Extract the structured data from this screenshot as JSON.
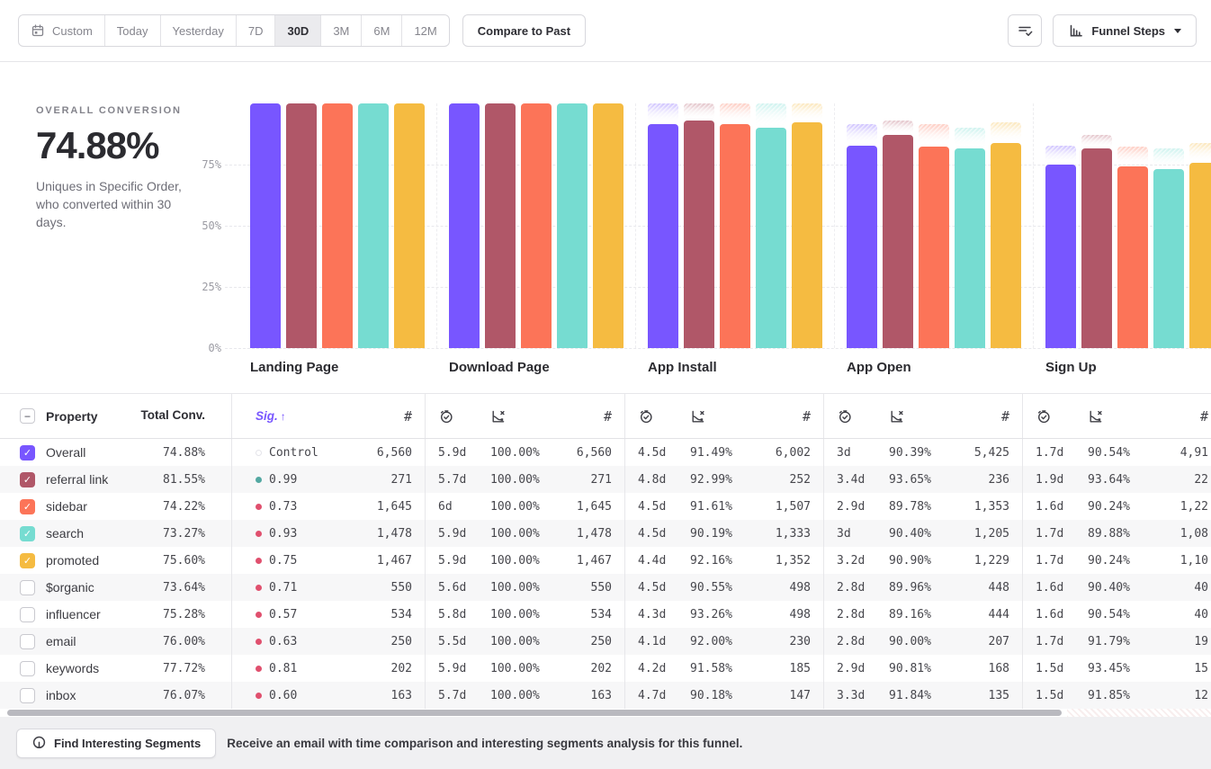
{
  "toolbar": {
    "date_picker": {
      "items": [
        "Custom",
        "Today",
        "Yesterday",
        "7D",
        "30D",
        "3M",
        "6M",
        "12M"
      ],
      "selected": "30D"
    },
    "compare_button": "Compare to Past",
    "chart_type_button": "Funnel Steps"
  },
  "summary": {
    "title": "OVERALL CONVERSION",
    "value": "74.88%",
    "description": "Uniques in Specific Order, who converted within 30 days."
  },
  "chart_data": {
    "type": "bar",
    "categories": [
      "Landing Page",
      "Download Page",
      "App Install",
      "App Open",
      "Sign Up"
    ],
    "y_ticks": [
      "75%",
      "50%",
      "25%",
      "0%"
    ],
    "ylim": [
      0,
      100
    ],
    "grid": "horizontal-dashed",
    "series": [
      {
        "name": "Overall",
        "color": "#7856FF",
        "values": [
          100,
          100,
          91.49,
          82.7,
          74.88
        ]
      },
      {
        "name": "referral link",
        "color": "#B05768",
        "values": [
          100,
          100,
          92.99,
          87.08,
          81.55
        ]
      },
      {
        "name": "sidebar",
        "color": "#FC7458",
        "values": [
          100,
          100,
          91.61,
          82.25,
          74.22
        ]
      },
      {
        "name": "search",
        "color": "#76DCD1",
        "values": [
          100,
          100,
          90.19,
          81.53,
          73.27
        ]
      },
      {
        "name": "promoted",
        "color": "#F5BB41",
        "values": [
          100,
          100,
          92.16,
          83.78,
          75.6
        ]
      }
    ]
  },
  "table": {
    "property_header": "Property",
    "total_header": "Total Conv.",
    "sig_header": "Sig.",
    "sort_arrow": "↑",
    "count_symbol": "#",
    "step_groups": [
      "Download Page",
      "App Install",
      "App Open",
      "Sign Up"
    ],
    "dot_colors": {
      "control": "#FFFFFF",
      "positive": "#53A8A2",
      "negative": "#E0506E"
    },
    "rows": [
      {
        "property": "Overall",
        "checked": true,
        "color": "#7856FF",
        "total": "74.88%",
        "sig": "Control",
        "dot": "control",
        "landing_count": "6,560",
        "cells": [
          [
            "5.9d",
            "100.00%",
            "6,560"
          ],
          [
            "4.5d",
            "91.49%",
            "6,002"
          ],
          [
            "3d",
            "90.39%",
            "5,425"
          ],
          [
            "1.7d",
            "90.54%",
            "4,91"
          ]
        ]
      },
      {
        "property": "referral link",
        "checked": true,
        "color": "#B05768",
        "total": "81.55%",
        "sig": "0.99",
        "dot": "positive",
        "landing_count": "271",
        "cells": [
          [
            "5.7d",
            "100.00%",
            "271"
          ],
          [
            "4.8d",
            "92.99%",
            "252"
          ],
          [
            "3.4d",
            "93.65%",
            "236"
          ],
          [
            "1.9d",
            "93.64%",
            "22"
          ]
        ]
      },
      {
        "property": "sidebar",
        "checked": true,
        "color": "#FC7458",
        "total": "74.22%",
        "sig": "0.73",
        "dot": "negative",
        "landing_count": "1,645",
        "cells": [
          [
            "6d",
            "100.00%",
            "1,645"
          ],
          [
            "4.5d",
            "91.61%",
            "1,507"
          ],
          [
            "2.9d",
            "89.78%",
            "1,353"
          ],
          [
            "1.6d",
            "90.24%",
            "1,22"
          ]
        ]
      },
      {
        "property": "search",
        "checked": true,
        "color": "#76DCD1",
        "total": "73.27%",
        "sig": "0.93",
        "dot": "negative",
        "landing_count": "1,478",
        "cells": [
          [
            "5.9d",
            "100.00%",
            "1,478"
          ],
          [
            "4.5d",
            "90.19%",
            "1,333"
          ],
          [
            "3d",
            "90.40%",
            "1,205"
          ],
          [
            "1.7d",
            "89.88%",
            "1,08"
          ]
        ]
      },
      {
        "property": "promoted",
        "checked": true,
        "color": "#F5BB41",
        "total": "75.60%",
        "sig": "0.75",
        "dot": "negative",
        "landing_count": "1,467",
        "cells": [
          [
            "5.9d",
            "100.00%",
            "1,467"
          ],
          [
            "4.4d",
            "92.16%",
            "1,352"
          ],
          [
            "3.2d",
            "90.90%",
            "1,229"
          ],
          [
            "1.7d",
            "90.24%",
            "1,10"
          ]
        ]
      },
      {
        "property": "$organic",
        "checked": false,
        "color": null,
        "total": "73.64%",
        "sig": "0.71",
        "dot": "negative",
        "landing_count": "550",
        "cells": [
          [
            "5.6d",
            "100.00%",
            "550"
          ],
          [
            "4.5d",
            "90.55%",
            "498"
          ],
          [
            "2.8d",
            "89.96%",
            "448"
          ],
          [
            "1.6d",
            "90.40%",
            "40"
          ]
        ]
      },
      {
        "property": "influencer",
        "checked": false,
        "color": null,
        "total": "75.28%",
        "sig": "0.57",
        "dot": "negative",
        "landing_count": "534",
        "cells": [
          [
            "5.8d",
            "100.00%",
            "534"
          ],
          [
            "4.3d",
            "93.26%",
            "498"
          ],
          [
            "2.8d",
            "89.16%",
            "444"
          ],
          [
            "1.6d",
            "90.54%",
            "40"
          ]
        ]
      },
      {
        "property": "email",
        "checked": false,
        "color": null,
        "total": "76.00%",
        "sig": "0.63",
        "dot": "negative",
        "landing_count": "250",
        "cells": [
          [
            "5.5d",
            "100.00%",
            "250"
          ],
          [
            "4.1d",
            "92.00%",
            "230"
          ],
          [
            "2.8d",
            "90.00%",
            "207"
          ],
          [
            "1.7d",
            "91.79%",
            "19"
          ]
        ]
      },
      {
        "property": "keywords",
        "checked": false,
        "color": null,
        "total": "77.72%",
        "sig": "0.81",
        "dot": "negative",
        "landing_count": "202",
        "cells": [
          [
            "5.9d",
            "100.00%",
            "202"
          ],
          [
            "4.2d",
            "91.58%",
            "185"
          ],
          [
            "2.9d",
            "90.81%",
            "168"
          ],
          [
            "1.5d",
            "93.45%",
            "15"
          ]
        ]
      },
      {
        "property": "inbox",
        "checked": false,
        "color": null,
        "total": "76.07%",
        "sig": "0.60",
        "dot": "negative",
        "landing_count": "163",
        "cells": [
          [
            "5.7d",
            "100.00%",
            "163"
          ],
          [
            "4.7d",
            "90.18%",
            "147"
          ],
          [
            "3.3d",
            "91.84%",
            "135"
          ],
          [
            "1.5d",
            "91.85%",
            "12"
          ]
        ]
      }
    ]
  },
  "footer": {
    "button_label": "Find Interesting Segments",
    "message": "Receive an email with time comparison and interesting segments analysis for this funnel."
  }
}
